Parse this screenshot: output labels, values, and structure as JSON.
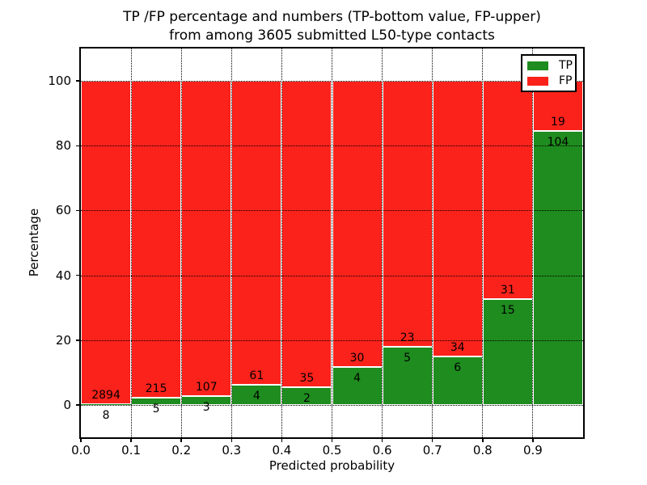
{
  "chart_data": {
    "type": "bar",
    "stacked_percent": true,
    "title_line1": "TP /FP percentage and numbers (TP-bottom value, FP-upper)",
    "title_line2": "from among 3605 submitted L50-type contacts",
    "total_contacts": 3605,
    "xlabel": "Predicted probability",
    "ylabel": "Percentage",
    "xlim": [
      0.0,
      1.0
    ],
    "ylim": [
      -10,
      110
    ],
    "grid": true,
    "x_ticks": [
      "0.0",
      "0.1",
      "0.2",
      "0.3",
      "0.4",
      "0.5",
      "0.6",
      "0.7",
      "0.8",
      "0.9"
    ],
    "y_ticks": [
      0,
      20,
      40,
      60,
      80,
      100
    ],
    "categories": [
      "0.0-0.1",
      "0.1-0.2",
      "0.2-0.3",
      "0.3-0.4",
      "0.4-0.5",
      "0.5-0.6",
      "0.6-0.7",
      "0.7-0.8",
      "0.8-0.9",
      "0.9-1.0"
    ],
    "series": [
      {
        "name": "TP",
        "color": "#1e8c1e",
        "counts": [
          8,
          5,
          3,
          4,
          2,
          4,
          5,
          6,
          15,
          104
        ]
      },
      {
        "name": "FP",
        "color": "#fb221b",
        "counts": [
          2894,
          215,
          107,
          61,
          35,
          30,
          23,
          34,
          31,
          19
        ]
      }
    ],
    "tp_percent": [
      0.28,
      2.27,
      2.73,
      6.15,
      5.41,
      11.76,
      17.86,
      15.0,
      32.61,
      84.55
    ],
    "legend_position": "upper right",
    "bar_edge_color": "#ffffff"
  }
}
